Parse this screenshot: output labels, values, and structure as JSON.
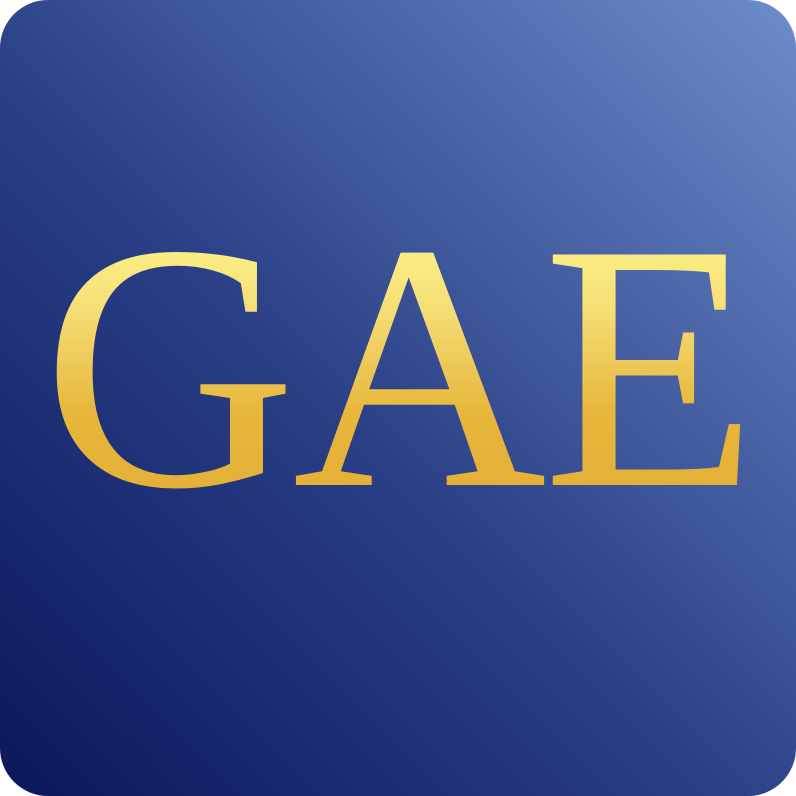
{
  "logo": {
    "text": "GAE"
  }
}
